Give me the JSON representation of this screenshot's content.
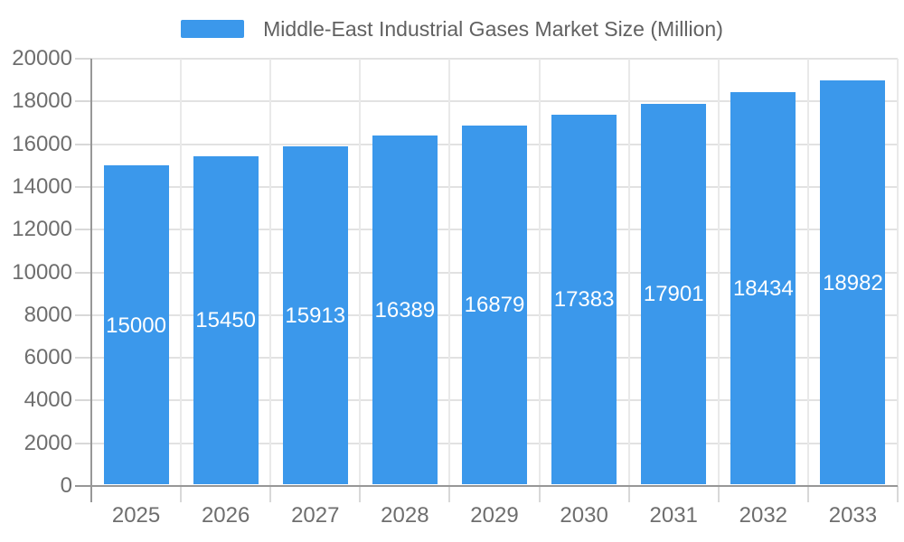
{
  "legend": {
    "label": "Middle-East Industrial Gases Market Size (Million)"
  },
  "chart_data": {
    "type": "bar",
    "title": "Middle-East Industrial Gases Market Size (Million)",
    "categories": [
      "2025",
      "2026",
      "2027",
      "2028",
      "2029",
      "2030",
      "2031",
      "2032",
      "2033"
    ],
    "values": [
      15000,
      15450,
      15913,
      16389,
      16879,
      17383,
      17901,
      18434,
      18982
    ],
    "xlabel": "",
    "ylabel": "",
    "ylim": [
      0,
      20000
    ],
    "ytick_step": 2000,
    "yticks": [
      0,
      2000,
      4000,
      6000,
      8000,
      10000,
      12000,
      14000,
      16000,
      18000,
      20000
    ],
    "grid": true,
    "legend_position": "top-center",
    "value_label_position": "middle-of-bar"
  },
  "colors": {
    "bar": "#3B98EB",
    "bar_value_label": "#FFFFFF",
    "axis_line": "#979797",
    "grid_h": "#E2E2E2",
    "grid_v": "#E9E9E9",
    "tick": "#D8D8D8",
    "axis_label": "#6E6E6E",
    "legend_text": "#616161",
    "background": "#FFFFFF"
  }
}
